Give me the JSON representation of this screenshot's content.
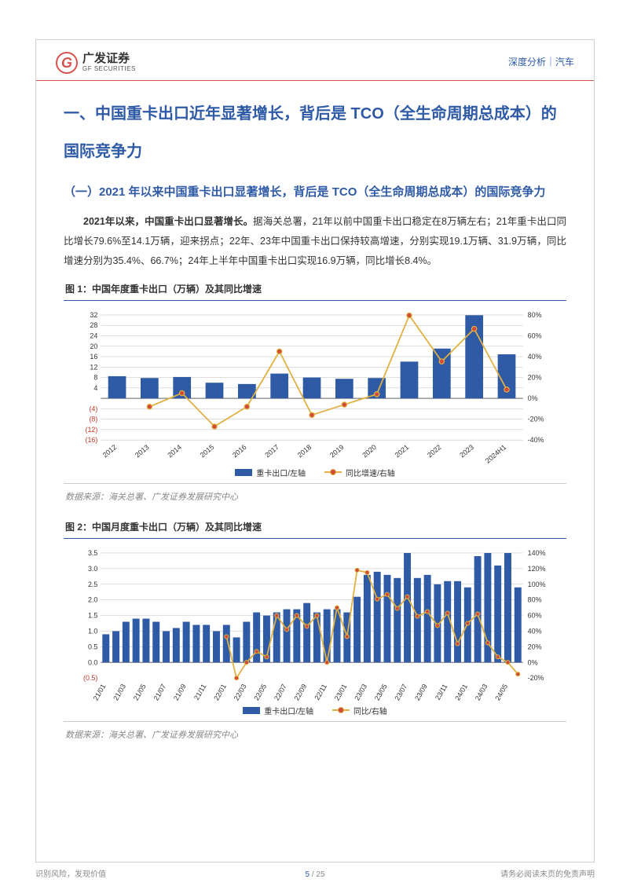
{
  "header": {
    "logo_cn": "广发证券",
    "logo_en": "GF SECURITIES",
    "right_text": "深度分析｜汽车"
  },
  "h1": "一、中国重卡出口近年显著增长，背后是 TCO（全生命周期总成本）的国际竞争力",
  "h2": "（一）2021 年以来中国重卡出口显著增长，背后是 TCO（全生命周期总成本）的国际竞争力",
  "para1_strong": "2021年以来，中国重卡出口显著增长。",
  "para1_rest": "据海关总署，21年以前中国重卡出口稳定在8万辆左右；21年重卡出口同比增长79.6%至14.1万辆，迎来拐点；22年、23年中国重卡出口保持较高增速，分别实现19.1万辆、31.9万辆，同比增速分别为35.4%、66.7%；24年上半年中国重卡出口实现16.9万辆，同比增长8.4%。",
  "fig1": {
    "title": "图 1：中国年度重卡出口（万辆）及其同比增速",
    "type": "bar_line_combo",
    "categories": [
      "2012",
      "2013",
      "2014",
      "2015",
      "2016",
      "2017",
      "2018",
      "2019",
      "2020",
      "2021",
      "2022",
      "2023",
      "2024H1"
    ],
    "bars": [
      8.5,
      7.8,
      8.2,
      6.0,
      5.5,
      9.5,
      8.0,
      7.5,
      7.8,
      14.1,
      19.1,
      31.9,
      16.9
    ],
    "line": [
      null,
      -8,
      5,
      -27,
      -8,
      45,
      -16,
      -6,
      4,
      79.6,
      35.4,
      66.7,
      8.4
    ],
    "y_left": {
      "min": -16,
      "max": 32,
      "ticks_pos": [
        4,
        8,
        12,
        16,
        20,
        24,
        28,
        32
      ],
      "ticks_neg": [
        -4,
        -8,
        -12,
        -16
      ],
      "ticks_neg_labels": [
        "(4)",
        "(8)",
        "(12)",
        "(16)"
      ]
    },
    "y_right": {
      "min": -40,
      "max": 80,
      "step": 20,
      "ticks": [
        "-40%",
        "-20%",
        "0%",
        "20%",
        "40%",
        "60%",
        "80%"
      ]
    },
    "bar_color": "#2e5aa6",
    "line_color": "#e0b040",
    "marker_fill": "#d04a3a",
    "legend_bar": "重卡出口/左轴",
    "legend_line": "同比增速/右轴",
    "source": "数据来源：海关总署、广发证券发展研究中心"
  },
  "fig2": {
    "title": "图 2：中国月度重卡出口（万辆）及其同比增速",
    "type": "bar_line_combo",
    "categories": [
      "21/01",
      "21/03",
      "21/05",
      "21/07",
      "21/09",
      "21/11",
      "22/01",
      "22/03",
      "22/05",
      "22/07",
      "22/09",
      "22/11",
      "23/01",
      "23/03",
      "23/05",
      "23/07",
      "23/09",
      "23/11",
      "24/01",
      "24/03",
      "24/05"
    ],
    "n_bars": 42,
    "bars": [
      0.9,
      1.0,
      1.3,
      1.4,
      1.4,
      1.3,
      1.0,
      1.1,
      1.3,
      1.2,
      1.2,
      1.0,
      1.2,
      0.8,
      1.3,
      1.6,
      1.5,
      1.6,
      1.7,
      1.7,
      1.9,
      1.6,
      1.7,
      1.7,
      1.6,
      2.1,
      2.8,
      2.9,
      2.8,
      2.7,
      3.5,
      2.7,
      2.8,
      2.5,
      2.6,
      2.6,
      2.4,
      3.4,
      3.5,
      3.1,
      3.5,
      2.4
    ],
    "line": [
      null,
      null,
      null,
      null,
      null,
      null,
      null,
      null,
      null,
      null,
      null,
      null,
      33,
      -20,
      0,
      14,
      7,
      60,
      42,
      60,
      46,
      60,
      0,
      70,
      33,
      118,
      115,
      81,
      87,
      69,
      84,
      59,
      65,
      47,
      63,
      24,
      50,
      62,
      25,
      7,
      0,
      -15
    ],
    "y_left": {
      "min": -0.5,
      "max": 3.5,
      "step": 0.5,
      "ticks_pos": [
        "0.0",
        "0.5",
        "1.0",
        "1.5",
        "2.0",
        "2.5",
        "3.0",
        "3.5"
      ],
      "ticks_neg": [
        "(0.5)"
      ]
    },
    "y_right": {
      "min": -20,
      "max": 140,
      "step": 20,
      "ticks": [
        "-20%",
        "0%",
        "20%",
        "40%",
        "60%",
        "80%",
        "100%",
        "120%",
        "140%"
      ]
    },
    "bar_color": "#2e5aa6",
    "line_color": "#e0b040",
    "marker_fill": "#d04a3a",
    "legend_bar": "重卡出口/左轴",
    "legend_line": "同比/右轴",
    "source": "数据来源：海关总署、广发证券发展研究中心"
  },
  "footer": {
    "left": "识别风险，发现价值",
    "right": "请务必阅读末页的免责声明",
    "page_cur": "5",
    "page_sep": " / ",
    "page_total": "25"
  },
  "colors": {
    "accent_blue": "#2e5aa6",
    "accent_red": "#d9534f",
    "grid": "#bbbbbb",
    "neg_red": "#c0392b"
  }
}
